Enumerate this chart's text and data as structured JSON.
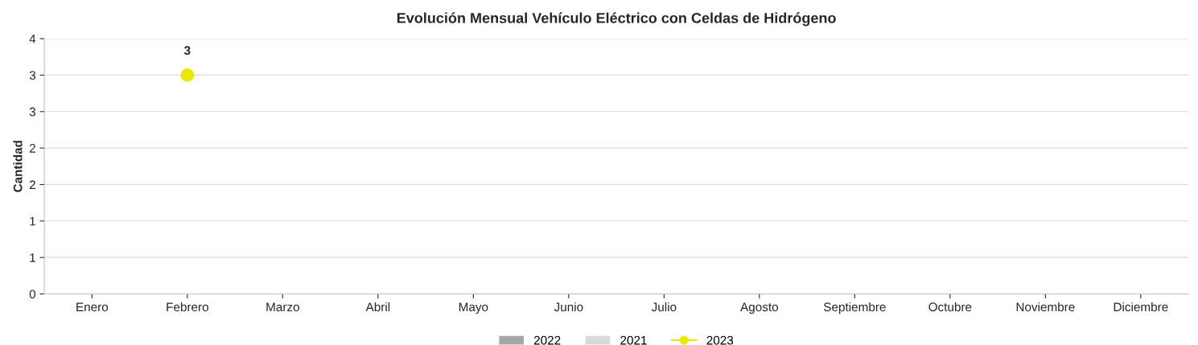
{
  "chart_data": {
    "type": "bar",
    "title": "Evolución Mensual Vehículo Eléctrico con Celdas de Hidrógeno",
    "ylabel": "Cantidad",
    "categories": [
      "Enero",
      "Febrero",
      "Marzo",
      "Abril",
      "Mayo",
      "Junio",
      "Julio",
      "Agosto",
      "Septiembre",
      "Octubre",
      "Noviembre",
      "Diciembre"
    ],
    "series": [
      {
        "name": "2022",
        "color": "#a6a6a6",
        "values": [
          null,
          null,
          null,
          null,
          null,
          null,
          null,
          null,
          null,
          null,
          null,
          null
        ]
      },
      {
        "name": "2021",
        "color": "#d9d9d9",
        "values": [
          null,
          null,
          null,
          null,
          null,
          null,
          null,
          null,
          null,
          null,
          null,
          null
        ]
      },
      {
        "name": "2023",
        "type": "line",
        "color": "#e8e800",
        "marker": "circle",
        "values": [
          null,
          3,
          null,
          null,
          null,
          null,
          null,
          null,
          null,
          null,
          null,
          null
        ],
        "value_labels": [
          null,
          "3",
          null,
          null,
          null,
          null,
          null,
          null,
          null,
          null,
          null,
          null
        ]
      }
    ],
    "ylim": [
      0,
      3.5
    ],
    "yticks": [
      0,
      {
        "value": 0.5,
        "label": "1"
      },
      1,
      {
        "value": 1.5,
        "label": "2"
      },
      2,
      {
        "value": 2.5,
        "label": "3"
      },
      3,
      {
        "value": 3.5,
        "label": "4"
      }
    ],
    "grid": "y",
    "legend": "bottom"
  }
}
